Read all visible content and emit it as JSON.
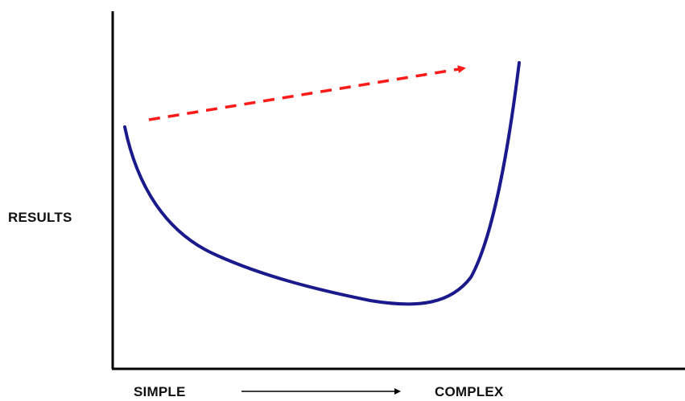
{
  "labels": {
    "y_axis": "RESULTS",
    "x_start": "SIMPLE",
    "x_end": "COMPLEX"
  },
  "colors": {
    "axis": "#000000",
    "curve": "#1a1a8c",
    "trend_arrow": "#ff1a1a",
    "text": "#111111"
  },
  "curve": {
    "shape": "u-curve",
    "description_points": [
      {
        "x": 0.0,
        "y": 0.73
      },
      {
        "x": 0.1,
        "y": 0.45
      },
      {
        "x": 0.25,
        "y": 0.28
      },
      {
        "x": 0.45,
        "y": 0.2
      },
      {
        "x": 0.72,
        "y": 0.13
      },
      {
        "x": 0.86,
        "y": 0.17
      },
      {
        "x": 0.95,
        "y": 0.45
      },
      {
        "x": 1.0,
        "y": 0.95
      }
    ]
  },
  "trend_arrow": {
    "style": "dashed",
    "direction": "up-right"
  }
}
